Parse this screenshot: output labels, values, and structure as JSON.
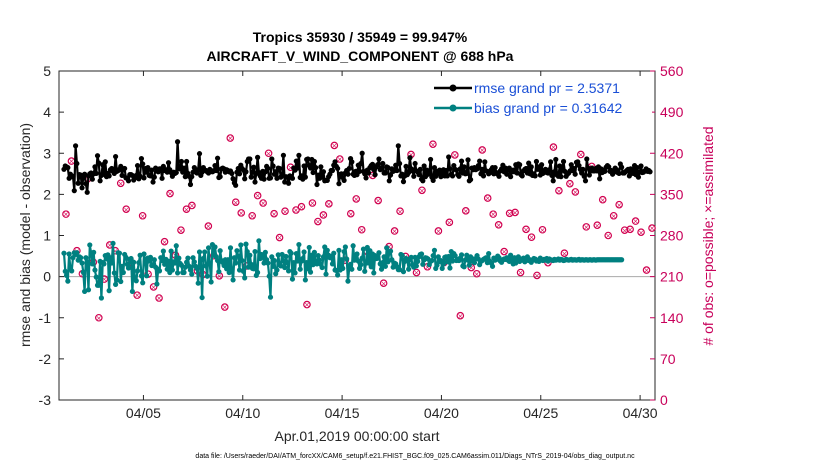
{
  "chart_data": {
    "type": "line",
    "title_line1": "Tropics 35930 / 35949 = 99.947%",
    "title_line2": "AIRCRAFT_V_WIND_COMPONENT @ 688 hPa",
    "xlabel": "Apr.01,2019 00:00:00 start",
    "ylabel": "rmse and bias (model - observation)",
    "ylabel_right": "# of obs: o=possible; ×=assimilated",
    "footer": "data file: /Users/raeder/DAI/ATM_forcXX/CAM6_setup/f.e21.FHIST_BGC.f09_025.CAM6assim.011/Diags_NTrS_2019-04/obs_diag_output.nc",
    "xlim": [
      0.75,
      30.75
    ],
    "ylim": [
      -3,
      5
    ],
    "ylim_right": [
      0,
      560
    ],
    "yticks": [
      -3,
      -2,
      -1,
      0,
      1,
      2,
      3,
      4,
      5
    ],
    "yticks_right": [
      0,
      70,
      140,
      210,
      280,
      350,
      420,
      490,
      560
    ],
    "xticks": [
      5,
      10,
      15,
      20,
      25,
      30
    ],
    "xtick_labels": [
      "04/05",
      "04/10",
      "04/15",
      "04/20",
      "04/25",
      "04/30"
    ],
    "colors": {
      "rmse": "#000000",
      "bias": "#008080",
      "obs": "#d1004f",
      "zero": "#aaaaaa",
      "axis": "#262626"
    },
    "legend_position": "top-right",
    "series": [
      {
        "name": "rmse grand pr = 2.5371",
        "values": [
          2.61,
          2.69,
          2.67,
          2.65,
          2.39,
          2.49,
          2.43,
          2.44,
          2.09,
          3.18,
          2.75,
          2.27,
          2.48,
          2.47,
          2.16,
          2.4,
          2.49,
          2.26,
          2.05,
          2.45,
          2.5,
          2.52,
          2.37,
          2.5,
          2.67,
          2.51,
          2.94,
          2.76,
          2.33,
          2.46,
          2.72,
          2.49,
          2.79,
          2.43,
          2.51,
          2.45,
          2.6,
          2.63,
          2.56,
          2.51,
          2.92,
          2.56,
          2.58,
          2.61,
          2.68,
          2.46,
          2.62,
          2.63,
          2.4,
          2.4,
          2.33,
          2.48,
          2.48,
          2.46,
          2.35,
          2.4,
          2.46,
          2.7,
          2.38,
          2.44,
          2.87,
          2.74,
          2.4,
          2.63,
          2.54,
          2.65,
          2.46,
          2.45,
          2.59,
          2.3,
          2.42,
          2.64,
          2.6,
          2.55,
          2.62,
          2.62,
          2.39,
          2.68,
          2.58,
          2.6,
          2.54,
          2.77,
          2.6,
          2.53,
          2.44,
          2.54,
          2.51,
          2.53,
          3.28,
          2.63,
          2.62,
          2.8,
          2.54,
          2.64,
          2.43,
          2.8,
          2.51,
          2.44,
          2.24,
          2.43,
          2.54,
          2.65,
          2.6,
          2.52,
          2.6,
          2.99,
          2.46,
          2.54,
          2.65,
          2.59,
          2.58,
          2.55,
          2.52,
          2.61,
          2.58,
          2.55,
          2.57,
          2.7,
          2.58,
          2.88,
          2.41,
          2.43,
          2.62,
          2.64,
          2.62,
          2.54,
          2.6,
          2.58,
          2.55,
          2.57,
          2.51,
          2.38,
          2.28,
          2.22,
          2.54,
          2.63,
          2.5,
          2.71,
          2.63,
          2.59,
          2.38,
          2.55,
          2.8,
          2.86,
          2.86,
          2.42,
          2.54,
          2.66,
          2.3,
          2.51,
          2.9,
          2.53,
          2.45,
          2.39,
          2.56,
          2.37,
          2.55,
          2.68,
          2.63,
          2.39,
          2.4,
          2.86,
          2.69,
          2.49,
          2.55,
          2.39,
          2.64,
          2.63,
          2.42,
          2.46,
          2.95,
          2.3,
          2.43,
          2.42,
          2.27,
          2.45,
          2.43,
          2.39,
          2.64,
          2.59,
          2.81,
          2.64,
          2.95,
          2.41,
          2.45,
          2.37,
          2.69,
          2.42,
          2.85,
          2.86,
          2.7,
          2.64,
          2.85,
          2.53,
          2.8,
          2.65,
          2.24,
          2.47,
          2.39,
          2.67,
          2.42,
          2.55,
          2.33,
          2.34,
          2.34,
          2.43,
          2.49,
          2.58,
          2.58,
          2.71,
          2.79,
          2.68,
          2.63,
          2.26,
          2.49,
          2.5,
          2.41,
          2.34,
          2.52,
          2.58,
          2.49,
          2.63,
          2.87,
          2.79,
          2.49,
          2.46,
          2.56,
          2.48,
          2.71,
          2.56,
          2.75,
          3.0,
          2.56,
          2.5,
          2.4,
          2.59,
          2.52,
          2.65,
          2.7,
          2.73,
          2.6,
          2.48,
          2.67,
          2.72,
          2.86,
          2.6,
          2.63,
          2.75,
          2.52,
          2.52,
          2.67,
          2.65,
          2.33,
          2.47,
          2.62,
          2.56,
          2.58,
          2.71,
          2.58,
          3.18,
          2.75,
          2.45,
          2.49,
          2.31,
          2.45,
          2.68,
          2.48,
          2.53,
          2.89,
          2.62,
          2.57,
          2.44,
          2.75,
          2.57,
          2.55,
          2.48,
          2.61,
          2.37,
          2.33,
          2.69,
          2.43,
          2.59,
          2.49,
          2.52,
          2.85,
          2.42,
          2.34,
          2.65,
          2.44,
          2.56,
          2.51,
          2.59,
          2.43,
          2.52,
          2.6,
          2.45,
          2.58,
          2.45,
          2.91,
          2.62,
          2.49,
          2.45,
          2.7,
          2.61,
          2.59,
          2.48,
          2.44,
          2.62,
          2.81,
          2.52,
          2.67,
          2.5,
          2.51,
          2.84,
          2.33,
          2.36,
          2.64,
          2.6,
          2.65,
          2.6,
          2.62,
          2.7,
          2.81,
          2.5,
          2.61,
          2.45,
          2.79,
          2.57,
          2.56,
          2.5,
          2.53,
          2.6,
          2.65,
          2.5,
          2.65,
          2.53,
          2.49,
          2.44,
          2.57,
          2.62,
          2.71,
          2.55,
          2.64,
          2.49,
          2.59,
          2.64,
          2.43,
          2.55,
          2.59,
          2.55,
          2.72,
          2.52,
          2.74,
          2.72,
          2.48,
          2.45,
          2.57,
          2.61,
          2.63,
          2.52,
          2.76,
          2.5,
          2.67,
          2.46,
          2.5,
          2.45,
          2.8,
          2.61,
          2.67,
          2.47,
          2.72,
          2.51,
          2.54,
          2.61,
          2.53,
          2.52,
          2.6,
          2.79,
          2.46,
          2.33,
          2.55,
          2.85,
          2.47,
          2.44,
          2.69,
          2.43,
          2.66,
          2.8,
          2.56,
          2.44,
          2.49,
          2.52,
          2.57,
          2.72,
          2.58,
          2.63,
          2.49,
          2.78,
          2.79,
          2.7,
          2.61,
          2.52,
          2.61,
          2.44,
          2.33,
          2.86,
          2.64,
          2.47,
          2.57,
          2.64,
          2.57,
          2.57,
          2.63,
          2.57,
          2.67,
          2.38,
          2.62,
          2.53,
          2.59,
          2.56,
          2.66,
          2.7,
          2.67,
          2.56,
          2.58,
          2.49,
          2.54,
          2.64,
          2.6,
          2.53,
          2.51,
          2.74,
          2.66,
          2.52,
          2.52,
          2.55,
          2.58,
          2.61,
          2.45,
          2.62,
          2.6,
          2.51,
          2.7,
          2.48,
          2.65,
          2.42,
          2.54,
          2.69,
          2.53,
          2.54,
          2.57,
          2.62,
          2.56,
          2.58,
          2.55
        ]
      },
      {
        "name": "bias grand pr = 0.31642",
        "values": [
          0.57,
          0.13,
          0.03,
          -0.11,
          0.55,
          0.19,
          0.14,
          0.46,
          0.58,
          0.54,
          0.58,
          0.4,
          0.48,
          0.46,
          0.33,
          0.11,
          -0.36,
          0.46,
          0.36,
          -0.32,
          0.77,
          0.58,
          0.31,
          0.59,
          0.16,
          -0.01,
          -0.21,
          -0.21,
          0.37,
          -0.52,
          0.34,
          0.31,
          0.51,
          0.43,
          0.53,
          -0.34,
          0.46,
          0.33,
          0.81,
          0.09,
          -0.19,
          -0.08,
          0.58,
          0.57,
          -0.12,
          0.25,
          0.1,
          0.54,
          0.47,
          0.3,
          0.21,
          0.42,
          0.44,
          -0.36,
          0.35,
          -0.06,
          -0.1,
          0.14,
          0.34,
          0.52,
          0.02,
          -0.15,
          0.55,
          0.37,
          0.02,
          0.45,
          0.38,
          0.47,
          0.27,
          0.28,
          0.41,
          0.23,
          -0.18,
          0.18,
          0.14,
          0.46,
          0.39,
          0.62,
          0.3,
          0.42,
          0.18,
          0.37,
          0.1,
          0.62,
          0.16,
          0.36,
          0.33,
          0.75,
          0.09,
          0.45,
          0.32,
          0.28,
          0.1,
          0.1,
          0.23,
          0.35,
          0.45,
          0.25,
          0.16,
          0.06,
          0.46,
          0.36,
          0.25,
          0.2,
          -0.16,
          0.6,
          0.4,
          -0.51,
          0.44,
          0.6,
          0.26,
          0.01,
          0.7,
          0.31,
          -0.13,
          0.78,
          0.52,
          0.72,
          0.48,
          0.39,
          0.12,
          0.63,
          0.39,
          0.35,
          0.27,
          0.41,
          0.19,
          0.41,
          0.1,
          0.7,
          0.18,
          -0.08,
          0.46,
          0.33,
          0.63,
          0.5,
          0.16,
          0.77,
          0.39,
          0.13,
          -0.03,
          0.79,
          0.61,
          0.23,
          0.52,
          0.3,
          0.2,
          0.19,
          0.61,
          0.03,
          0.1,
          0.87,
          0.44,
          0.54,
          0.5,
          0.33,
          0.59,
          0.41,
          0.33,
          0.01,
          -0.5,
          0.48,
          0.25,
          0.39,
          0.07,
          0.16,
          0.53,
          0.29,
          0.26,
          0.54,
          0.38,
          0.22,
          0.49,
          0.34,
          0.14,
          0.61,
          0.57,
          -0.06,
          0.34,
          0.09,
          0.56,
          0.38,
          0.78,
          0.18,
          0.38,
          0.44,
          0.6,
          -0.08,
          0.34,
          0.19,
          0.71,
          0.11,
          0.52,
          0.29,
          0.59,
          0.38,
          0.31,
          0.51,
          0.4,
          0.3,
          0.22,
          0.48,
          0.72,
          0.06,
          0.64,
          0.52,
          0.46,
          0.49,
          0.31,
          0.57,
          0.16,
          0.15,
          0.04,
          0.64,
          0.16,
          0.41,
          0.2,
          0.61,
          0.72,
          0.43,
          -0.11,
          0.23,
          0.3,
          0.18,
          0.75,
          0.4,
          0.47,
          0.55,
          0.38,
          0.2,
          0.29,
          0.45,
          0.67,
          0.13,
          0.33,
          0.71,
          0.33,
          0.63,
          0.24,
          0.55,
          0.09,
          0.51,
          0.44,
          0.45,
          0.58,
          0.31,
          0.18,
          0.34,
          0.48,
          0.25,
          0.7,
          0.36,
          0.59,
          0.62,
          0.41,
          0.23,
          0.33,
          0.31,
          0.24,
          0.17,
          0.17,
          0.54,
          0.52,
          0.12,
          0.37,
          0.44,
          0.42,
          0.18,
          0.42,
          0.47,
          0.28,
          0.23,
          0.47,
          0.26,
          0.37,
          0.48,
          0.54,
          0.55,
          0.3,
          0.41,
          0.46,
          0.45,
          0.43,
          0.29,
          0.37,
          0.39,
          0.51,
          0.64,
          0.2,
          0.28,
          0.48,
          0.37,
          0.39,
          0.2,
          0.31,
          0.47,
          0.48,
          0.36,
          0.49,
          0.21,
          0.61,
          0.38,
          0.56,
          0.51,
          0.39,
          0.42,
          0.39,
          0.45,
          0.53,
          0.26,
          0.24,
          0.41,
          0.52,
          0.4,
          0.28,
          0.48,
          0.38,
          0.43,
          0.34,
          0.44,
          0.51,
          0.43,
          0.29,
          0.37,
          0.39,
          0.42,
          0.44,
          0.46,
          0.34,
          0.56,
          0.37,
          0.33,
          0.25,
          0.45,
          0.4,
          0.42,
          0.5,
          0.46,
          0.38,
          0.35,
          0.41,
          0.43,
          0.42,
          0.46,
          0.4,
          0.37,
          0.52,
          0.38,
          0.31,
          0.46,
          0.33,
          0.44,
          0.48,
          0.37,
          0.43,
          0.4,
          0.45,
          0.36,
          0.42,
          0.48,
          0.39,
          0.41,
          0.35,
          0.4,
          0.44,
          0.43,
          0.38,
          0.4,
          0.37,
          0.45,
          0.41,
          0.39,
          0.42,
          0.4,
          0.44,
          0.38,
          0.43,
          0.41,
          0.4,
          0.39,
          0.42,
          0.4,
          0.41,
          0.43,
          0.4,
          0.42,
          0.41,
          0.39,
          0.4,
          0.42,
          0.41,
          0.4,
          0.41,
          0.42,
          0.4,
          0.41,
          0.41,
          0.4,
          0.41,
          0.42,
          0.4,
          0.41,
          0.41,
          0.4,
          0.41,
          0.41,
          0.4,
          0.41,
          0.41,
          0.4,
          0.41,
          0.41,
          0.4,
          0.41,
          0.41,
          0.41,
          0.41,
          0.41,
          0.41,
          0.41,
          0.41,
          0.41,
          0.41,
          0.41,
          0.41,
          0.41,
          0.41,
          0.41,
          0.41,
          0.41,
          0.41,
          0.41,
          0.41
        ]
      },
      {
        "name": "# of obs",
        "values": [
          1.52,
          2.81,
          0.63,
          0.07,
          2.38,
          0.35,
          -1.0,
          -0.06,
          0.77,
          0.63,
          2.27,
          1.64,
          0.34,
          -0.45,
          1.48,
          0.06,
          -0.25,
          -0.52,
          0.85,
          2.02,
          0.52,
          1.13,
          1.64,
          1.73,
          0.14,
          0.05,
          1.23,
          0.51,
          0.02,
          -0.74,
          3.37,
          1.81,
          1.55,
          0.26,
          1.48,
          1.97,
          1.79,
          3.0,
          1.53,
          0.95,
          1.59,
          2.66,
          1.62,
          1.7,
          -0.68,
          1.79,
          1.34,
          1.5,
          1.77,
          3.19,
          2.86,
          0.4,
          1.53,
          1.89,
          1.14,
          0.61,
          2.46,
          1.85,
          -0.16,
          0.73,
          1.11,
          1.59,
          0.49,
          2.97,
          0.1,
          2.1,
          0.24,
          3.22,
          1.11,
          0.34,
          1.32,
          2.96,
          -0.95,
          1.6,
          0.22,
          0.07,
          3.08,
          1.91,
          1.52,
          1.26,
          0.61,
          1.54,
          1.56,
          0.1,
          1.15,
          0.96,
          0.03,
          1.14,
          0.34,
          3.15,
          2.09,
          0.57,
          2.26,
          2.06,
          2.97,
          1.21,
          2.68,
          1.25,
          1.87,
          1.0,
          1.48,
          1.75,
          1.13,
          1.15,
          1.35,
          1.08,
          0.16,
          1.18
        ]
      }
    ]
  },
  "legend": {
    "rmse": "rmse grand pr = 2.5371",
    "bias": "bias grand pr = 0.31642"
  }
}
